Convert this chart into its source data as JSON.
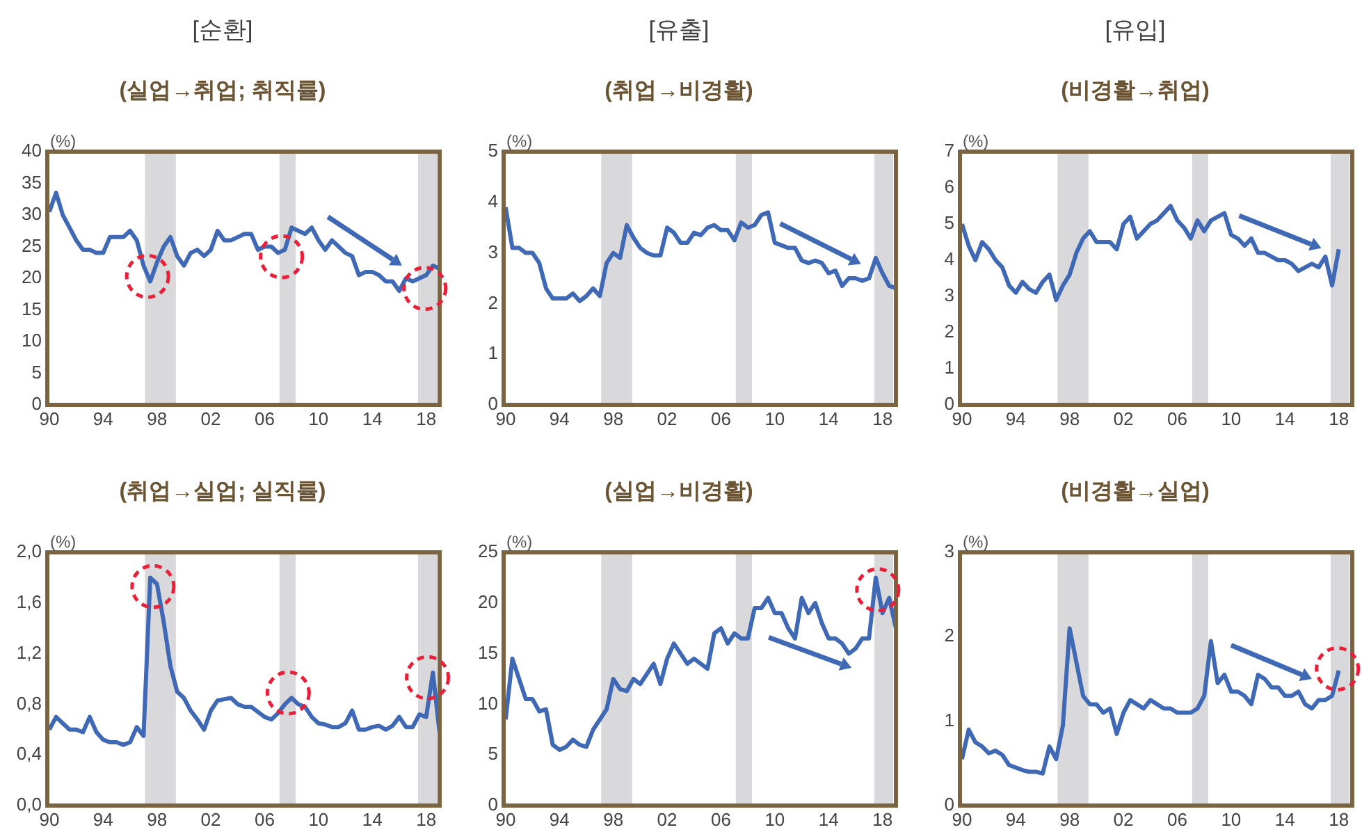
{
  "chart_data": [
    {
      "type": "line",
      "title": "[순환]",
      "subtitle": "(실업→취업; 취직률)",
      "ylabel": "(%)",
      "x": [
        1990,
        1990.5,
        1991,
        1991.5,
        1992,
        1992.5,
        1993,
        1993.5,
        1994,
        1994.5,
        1995,
        1995.5,
        1996,
        1996.5,
        1997,
        1997.5,
        1998,
        1998.5,
        1999,
        1999.5,
        2000,
        2000.5,
        2001,
        2001.5,
        2002,
        2002.5,
        2003,
        2003.5,
        2004,
        2004.5,
        2005,
        2005.5,
        2006,
        2006.5,
        2007,
        2007.5,
        2008,
        2008.5,
        2009,
        2009.5,
        2010,
        2010.5,
        2011,
        2011.5,
        2012,
        2012.5,
        2013,
        2013.5,
        2014,
        2014.5,
        2015,
        2015.5,
        2016,
        2016.5,
        2017,
        2017.5,
        2018,
        2018.5,
        2019
      ],
      "series": [
        {
          "color": "#3f68b5",
          "values": [
            30.5,
            33.5,
            30,
            28,
            26,
            24.5,
            24.5,
            24,
            24,
            26.5,
            26.5,
            26.5,
            27.5,
            26,
            22,
            19.5,
            22.5,
            25,
            26.5,
            23.5,
            22,
            24,
            24.5,
            23.5,
            24.5,
            27.5,
            26,
            26,
            26.5,
            27,
            27,
            24.5,
            25,
            25,
            24,
            24.5,
            28,
            27.5,
            27,
            28,
            26,
            24.5,
            26,
            25,
            24,
            23.5,
            20.5,
            21,
            21,
            20.5,
            19.5,
            19.5,
            18,
            20,
            19.5,
            20,
            20.5,
            22,
            21.5
          ]
        }
      ],
      "xlim": [
        1989.85,
        2019
      ],
      "xticks": [
        {
          "value": 1990,
          "label": "90"
        },
        {
          "value": 1994,
          "label": "94"
        },
        {
          "value": 1998,
          "label": "98"
        },
        {
          "value": 2002,
          "label": "02"
        },
        {
          "value": 2006,
          "label": "06"
        },
        {
          "value": 2010,
          "label": "10"
        },
        {
          "value": 2014,
          "label": "14"
        },
        {
          "value": 2018,
          "label": "18"
        }
      ],
      "ylim": [
        0,
        40
      ],
      "yticks": [
        0,
        5,
        10,
        15,
        20,
        25,
        30,
        35,
        40
      ],
      "bands": [
        {
          "axis": "x",
          "from": 1997.1,
          "to": 1999.4,
          "color": "#d9d9dc"
        },
        {
          "axis": "x",
          "from": 2007.1,
          "to": 2008.3,
          "color": "#d9d9dc"
        },
        {
          "axis": "x",
          "from": 2017.4,
          "to": 2018.8,
          "color": "#d9d9dc"
        }
      ],
      "grid": false
    },
    {
      "type": "line",
      "title": "[유출]",
      "subtitle": "(취업→비경활)",
      "ylabel": "(%)",
      "x": [
        1990,
        1990.5,
        1991,
        1991.5,
        1992,
        1992.5,
        1993,
        1993.5,
        1994,
        1994.5,
        1995,
        1995.5,
        1996,
        1996.5,
        1997,
        1997.5,
        1998,
        1998.5,
        1999,
        1999.5,
        2000,
        2000.5,
        2001,
        2001.5,
        2002,
        2002.5,
        2003,
        2003.5,
        2004,
        2004.5,
        2005,
        2005.5,
        2006,
        2006.5,
        2007,
        2007.5,
        2008,
        2008.5,
        2009,
        2009.5,
        2010,
        2010.5,
        2011,
        2011.5,
        2012,
        2012.5,
        2013,
        2013.5,
        2014,
        2014.5,
        2015,
        2015.5,
        2016,
        2016.5,
        2017,
        2017.5,
        2018,
        2018.5,
        2019
      ],
      "series": [
        {
          "color": "#3f68b5",
          "values": [
            3.9,
            3.1,
            3.1,
            3.0,
            3.0,
            2.8,
            2.3,
            2.1,
            2.1,
            2.1,
            2.2,
            2.05,
            2.15,
            2.3,
            2.15,
            2.8,
            3.0,
            2.9,
            3.55,
            3.3,
            3.1,
            3.0,
            2.95,
            2.95,
            3.5,
            3.4,
            3.2,
            3.2,
            3.4,
            3.35,
            3.5,
            3.55,
            3.45,
            3.45,
            3.25,
            3.6,
            3.5,
            3.55,
            3.75,
            3.8,
            3.2,
            3.15,
            3.1,
            3.1,
            2.85,
            2.8,
            2.85,
            2.8,
            2.6,
            2.65,
            2.35,
            2.5,
            2.5,
            2.45,
            2.5,
            2.9,
            2.6,
            2.35,
            2.3
          ]
        }
      ],
      "xlim": [
        1989.85,
        2019
      ],
      "xticks": [
        {
          "value": 1990,
          "label": "90"
        },
        {
          "value": 1994,
          "label": "94"
        },
        {
          "value": 1998,
          "label": "98"
        },
        {
          "value": 2002,
          "label": "02"
        },
        {
          "value": 2006,
          "label": "06"
        },
        {
          "value": 2010,
          "label": "10"
        },
        {
          "value": 2014,
          "label": "14"
        },
        {
          "value": 2018,
          "label": "18"
        }
      ],
      "ylim": [
        0,
        5
      ],
      "yticks": [
        0,
        1,
        2,
        3,
        4,
        5
      ],
      "bands": [
        {
          "axis": "x",
          "from": 1997.1,
          "to": 1999.4,
          "color": "#d9d9dc"
        },
        {
          "axis": "x",
          "from": 2007.1,
          "to": 2008.3,
          "color": "#d9d9dc"
        },
        {
          "axis": "x",
          "from": 2017.4,
          "to": 2018.8,
          "color": "#d9d9dc"
        }
      ],
      "grid": false
    },
    {
      "type": "line",
      "title": "[유입]",
      "subtitle": "(비경활→취업)",
      "ylabel": "(%)",
      "x": [
        1990,
        1990.5,
        1991,
        1991.5,
        1992,
        1992.5,
        1993,
        1993.5,
        1994,
        1994.5,
        1995,
        1995.5,
        1996,
        1996.5,
        1997,
        1997.5,
        1998,
        1998.5,
        1999,
        1999.5,
        2000,
        2000.5,
        2001,
        2001.5,
        2002,
        2002.5,
        2003,
        2003.5,
        2004,
        2004.5,
        2005,
        2005.5,
        2006,
        2006.5,
        2007,
        2007.5,
        2008,
        2008.5,
        2009,
        2009.5,
        2010,
        2010.5,
        2011,
        2011.5,
        2012,
        2012.5,
        2013,
        2013.5,
        2014,
        2014.5,
        2015,
        2015.5,
        2016,
        2016.5,
        2017,
        2017.5,
        2018
      ],
      "series": [
        {
          "color": "#3f68b5",
          "values": [
            5.0,
            4.4,
            4.0,
            4.5,
            4.3,
            4.0,
            3.8,
            3.3,
            3.1,
            3.4,
            3.2,
            3.1,
            3.4,
            3.6,
            2.9,
            3.3,
            3.6,
            4.2,
            4.6,
            4.8,
            4.5,
            4.5,
            4.5,
            4.3,
            5.0,
            5.2,
            4.6,
            4.8,
            5.0,
            5.1,
            5.3,
            5.5,
            5.1,
            4.9,
            4.6,
            5.1,
            4.8,
            5.1,
            5.2,
            5.3,
            4.7,
            4.6,
            4.4,
            4.6,
            4.2,
            4.2,
            4.1,
            4.0,
            4.0,
            3.9,
            3.7,
            3.8,
            3.9,
            3.8,
            4.1,
            3.3,
            4.3
          ]
        }
      ],
      "xlim": [
        1989.85,
        2019
      ],
      "xticks": [
        {
          "value": 1990,
          "label": "90"
        },
        {
          "value": 1994,
          "label": "94"
        },
        {
          "value": 1998,
          "label": "98"
        },
        {
          "value": 2002,
          "label": "02"
        },
        {
          "value": 2006,
          "label": "06"
        },
        {
          "value": 2010,
          "label": "10"
        },
        {
          "value": 2014,
          "label": "14"
        },
        {
          "value": 2018,
          "label": "18"
        }
      ],
      "ylim": [
        0,
        7
      ],
      "yticks": [
        0,
        1,
        2,
        3,
        4,
        5,
        6,
        7
      ],
      "bands": [
        {
          "axis": "x",
          "from": 1997.1,
          "to": 1999.4,
          "color": "#d9d9dc"
        },
        {
          "axis": "x",
          "from": 2007.1,
          "to": 2008.3,
          "color": "#d9d9dc"
        },
        {
          "axis": "x",
          "from": 2017.4,
          "to": 2018.8,
          "color": "#d9d9dc"
        }
      ],
      "grid": false
    },
    {
      "type": "line",
      "subtitle": "(취업→실업; 실직률)",
      "ylabel": "(%)",
      "x": [
        1990,
        1990.5,
        1991,
        1991.5,
        1992,
        1992.5,
        1993,
        1993.5,
        1994,
        1994.5,
        1995,
        1995.5,
        1996,
        1996.5,
        1997,
        1997.5,
        1998,
        1998.5,
        1999,
        1999.5,
        2000,
        2000.5,
        2001,
        2001.5,
        2002,
        2002.5,
        2003,
        2003.5,
        2004,
        2004.5,
        2005,
        2005.5,
        2006,
        2006.5,
        2007,
        2007.5,
        2008,
        2008.5,
        2009,
        2009.5,
        2010,
        2010.5,
        2011,
        2011.5,
        2012,
        2012.5,
        2013,
        2013.5,
        2014,
        2014.5,
        2015,
        2015.5,
        2016,
        2016.5,
        2017,
        2017.5,
        2018,
        2018.5,
        2019
      ],
      "series": [
        {
          "color": "#3f68b5",
          "values": [
            0.6,
            0.7,
            0.65,
            0.6,
            0.6,
            0.58,
            0.7,
            0.58,
            0.52,
            0.5,
            0.5,
            0.48,
            0.5,
            0.62,
            0.55,
            1.8,
            1.75,
            1.45,
            1.1,
            0.9,
            0.85,
            0.75,
            0.68,
            0.6,
            0.75,
            0.83,
            0.84,
            0.85,
            0.8,
            0.78,
            0.78,
            0.74,
            0.7,
            0.68,
            0.73,
            0.8,
            0.85,
            0.8,
            0.78,
            0.7,
            0.65,
            0.64,
            0.62,
            0.62,
            0.65,
            0.75,
            0.6,
            0.6,
            0.62,
            0.63,
            0.6,
            0.63,
            0.7,
            0.62,
            0.62,
            0.72,
            0.7,
            1.05,
            0.57
          ]
        }
      ],
      "xlim": [
        1989.85,
        2019
      ],
      "xticks": [
        {
          "value": 1990,
          "label": "90"
        },
        {
          "value": 1994,
          "label": "94"
        },
        {
          "value": 1998,
          "label": "98"
        },
        {
          "value": 2002,
          "label": "02"
        },
        {
          "value": 2006,
          "label": "06"
        },
        {
          "value": 2010,
          "label": "10"
        },
        {
          "value": 2014,
          "label": "14"
        },
        {
          "value": 2018,
          "label": "18"
        }
      ],
      "ylim": [
        0,
        2
      ],
      "yticks": [
        {
          "value": 0,
          "label": "0,0"
        },
        {
          "value": 0.4,
          "label": "0,4"
        },
        {
          "value": 0.8,
          "label": "0,8"
        },
        {
          "value": 1.2,
          "label": "1,2"
        },
        {
          "value": 1.6,
          "label": "1,6"
        },
        {
          "value": 2,
          "label": "2,0"
        }
      ],
      "bands": [
        {
          "axis": "x",
          "from": 1997.1,
          "to": 1999.4,
          "color": "#d9d9dc"
        },
        {
          "axis": "x",
          "from": 2007.1,
          "to": 2008.3,
          "color": "#d9d9dc"
        },
        {
          "axis": "x",
          "from": 2017.4,
          "to": 2018.8,
          "color": "#d9d9dc"
        }
      ],
      "grid": false
    },
    {
      "type": "line",
      "subtitle": "(실업→비경활)",
      "ylabel": "(%)",
      "x": [
        1990,
        1990.5,
        1991,
        1991.5,
        1992,
        1992.5,
        1993,
        1993.5,
        1994,
        1994.5,
        1995,
        1995.5,
        1996,
        1996.5,
        1997,
        1997.5,
        1998,
        1998.5,
        1999,
        1999.5,
        2000,
        2000.5,
        2001,
        2001.5,
        2002,
        2002.5,
        2003,
        2003.5,
        2004,
        2004.5,
        2005,
        2005.5,
        2006,
        2006.5,
        2007,
        2007.5,
        2008,
        2008.5,
        2009,
        2009.5,
        2010,
        2010.5,
        2011,
        2011.5,
        2012,
        2012.5,
        2013,
        2013.5,
        2014,
        2014.5,
        2015,
        2015.5,
        2016,
        2016.5,
        2017,
        2017.5,
        2018,
        2018.5,
        2019
      ],
      "series": [
        {
          "color": "#3f68b5",
          "values": [
            8.5,
            14.5,
            12.5,
            10.5,
            10.5,
            9.3,
            9.5,
            6.0,
            5.5,
            5.8,
            6.5,
            6.0,
            5.8,
            7.5,
            8.5,
            9.5,
            12.5,
            11.5,
            11.3,
            12.5,
            12.0,
            13.0,
            14.0,
            12.0,
            14.5,
            16.0,
            15.0,
            14.0,
            14.5,
            14.0,
            13.5,
            17.0,
            17.5,
            16.0,
            17.0,
            16.5,
            16.5,
            19.5,
            19.5,
            20.5,
            19.0,
            19.0,
            17.5,
            16.5,
            20.5,
            19.0,
            20.0,
            18.0,
            16.5,
            16.5,
            16.0,
            15.0,
            15.5,
            16.5,
            16.5,
            22.5,
            19.0,
            20.5,
            17.5
          ]
        }
      ],
      "xlim": [
        1989.85,
        2019
      ],
      "xticks": [
        {
          "value": 1990,
          "label": "90"
        },
        {
          "value": 1994,
          "label": "94"
        },
        {
          "value": 1998,
          "label": "98"
        },
        {
          "value": 2002,
          "label": "02"
        },
        {
          "value": 2006,
          "label": "06"
        },
        {
          "value": 2010,
          "label": "10"
        },
        {
          "value": 2014,
          "label": "14"
        },
        {
          "value": 2018,
          "label": "18"
        }
      ],
      "ylim": [
        0,
        25
      ],
      "yticks": [
        0,
        5,
        10,
        15,
        20,
        25
      ],
      "bands": [
        {
          "axis": "x",
          "from": 1997.1,
          "to": 1999.4,
          "color": "#d9d9dc"
        },
        {
          "axis": "x",
          "from": 2007.1,
          "to": 2008.3,
          "color": "#d9d9dc"
        },
        {
          "axis": "x",
          "from": 2017.4,
          "to": 2018.8,
          "color": "#d9d9dc"
        }
      ],
      "grid": false
    },
    {
      "type": "line",
      "subtitle": "(비경활→실업)",
      "ylabel": "(%)",
      "x": [
        1990,
        1990.5,
        1991,
        1991.5,
        1992,
        1992.5,
        1993,
        1993.5,
        1994,
        1994.5,
        1995,
        1995.5,
        1996,
        1996.5,
        1997,
        1997.5,
        1998,
        1998.5,
        1999,
        1999.5,
        2000,
        2000.5,
        2001,
        2001.5,
        2002,
        2002.5,
        2003,
        2003.5,
        2004,
        2004.5,
        2005,
        2005.5,
        2006,
        2006.5,
        2007,
        2007.5,
        2008,
        2008.5,
        2009,
        2009.5,
        2010,
        2010.5,
        2011,
        2011.5,
        2012,
        2012.5,
        2013,
        2013.5,
        2014,
        2014.5,
        2015,
        2015.5,
        2016,
        2016.5,
        2017,
        2017.5,
        2018
      ],
      "series": [
        {
          "color": "#3f68b5",
          "values": [
            0.55,
            0.9,
            0.75,
            0.7,
            0.62,
            0.65,
            0.6,
            0.48,
            0.45,
            0.42,
            0.4,
            0.4,
            0.38,
            0.7,
            0.55,
            0.95,
            2.1,
            1.7,
            1.3,
            1.2,
            1.2,
            1.1,
            1.15,
            0.85,
            1.1,
            1.25,
            1.2,
            1.15,
            1.25,
            1.2,
            1.15,
            1.15,
            1.1,
            1.1,
            1.1,
            1.15,
            1.3,
            1.95,
            1.45,
            1.55,
            1.35,
            1.35,
            1.3,
            1.2,
            1.55,
            1.5,
            1.4,
            1.4,
            1.3,
            1.3,
            1.35,
            1.2,
            1.15,
            1.25,
            1.25,
            1.3,
            1.6
          ]
        }
      ],
      "xlim": [
        1989.85,
        2019
      ],
      "xticks": [
        {
          "value": 1990,
          "label": "90"
        },
        {
          "value": 1994,
          "label": "94"
        },
        {
          "value": 1998,
          "label": "98"
        },
        {
          "value": 2002,
          "label": "02"
        },
        {
          "value": 2006,
          "label": "06"
        },
        {
          "value": 2010,
          "label": "10"
        },
        {
          "value": 2014,
          "label": "14"
        },
        {
          "value": 2018,
          "label": "18"
        }
      ],
      "ylim": [
        0,
        3
      ],
      "yticks": [
        0,
        1,
        2,
        3
      ],
      "bands": [
        {
          "axis": "x",
          "from": 1997.1,
          "to": 1999.4,
          "color": "#d9d9dc"
        },
        {
          "axis": "x",
          "from": 2007.1,
          "to": 2008.3,
          "color": "#d9d9dc"
        },
        {
          "axis": "x",
          "from": 2017.4,
          "to": 2018.8,
          "color": "#d9d9dc"
        }
      ],
      "grid": false
    }
  ]
}
